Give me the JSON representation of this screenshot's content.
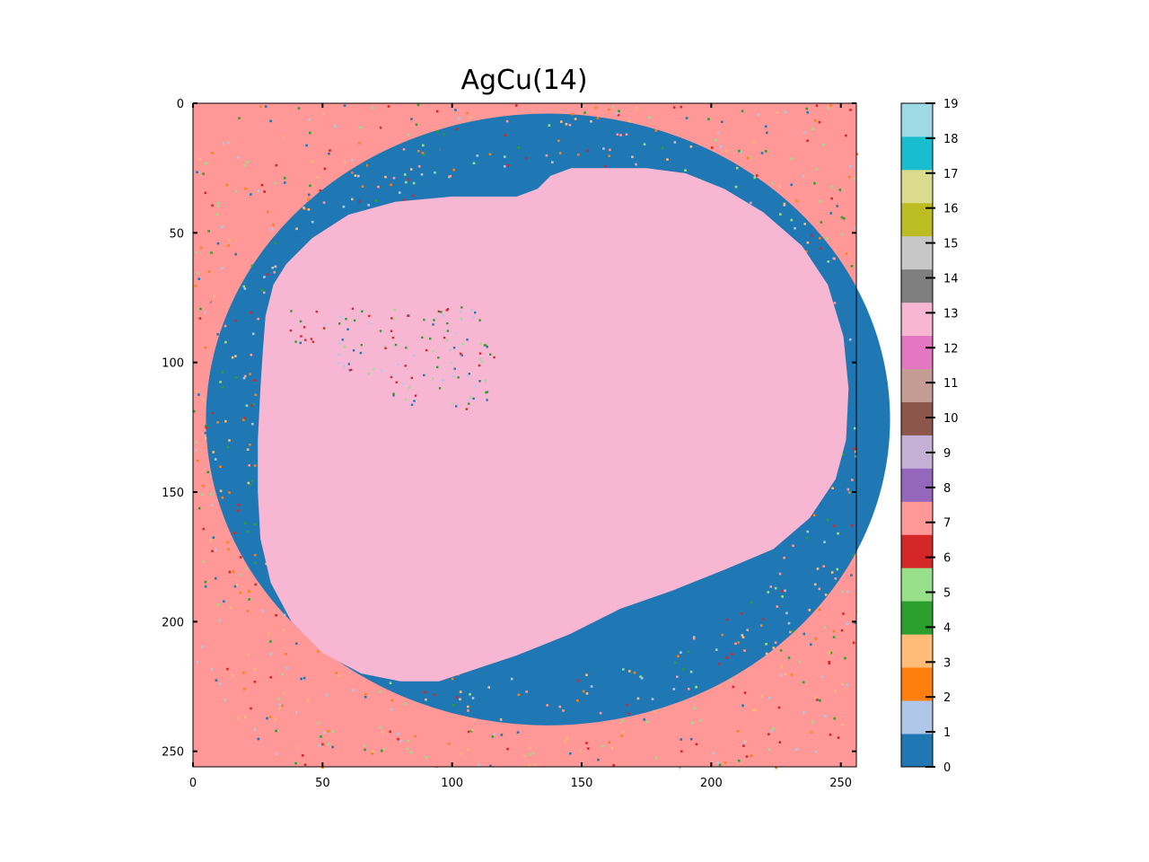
{
  "chart_data": {
    "type": "heatmap",
    "title": "AgCu(14)",
    "colormap": "tab20",
    "image_size": [
      256,
      256
    ],
    "x_ticks": [
      0,
      50,
      100,
      150,
      200,
      250
    ],
    "y_ticks": [
      0,
      50,
      100,
      150,
      200,
      250
    ],
    "xlim": [
      0,
      256
    ],
    "ylim": [
      256,
      0
    ],
    "y_axis_inverted": true,
    "regions": [
      {
        "class": 13,
        "description": "central core",
        "approx_extent_x": [
          25,
          253
        ],
        "approx_extent_y": [
          25,
          223
        ]
      },
      {
        "class": 0,
        "description": "ring surrounding core"
      },
      {
        "class": 7,
        "description": "outer matrix at image corners"
      }
    ],
    "colorbar": {
      "ticks": [
        0,
        1,
        2,
        3,
        4,
        5,
        6,
        7,
        8,
        9,
        10,
        11,
        12,
        13,
        14,
        15,
        16,
        17,
        18,
        19
      ],
      "colors": [
        "#1f77b4",
        "#aec7e8",
        "#ff7f0e",
        "#ffbb78",
        "#2ca02c",
        "#98df8a",
        "#d62728",
        "#ff9896",
        "#9467bd",
        "#c5b0d5",
        "#8c564b",
        "#c49c94",
        "#e377c2",
        "#f7b6d2",
        "#7f7f7f",
        "#c7c7c7",
        "#bcbd22",
        "#dbdb8d",
        "#17becf",
        "#9edae5"
      ]
    }
  }
}
